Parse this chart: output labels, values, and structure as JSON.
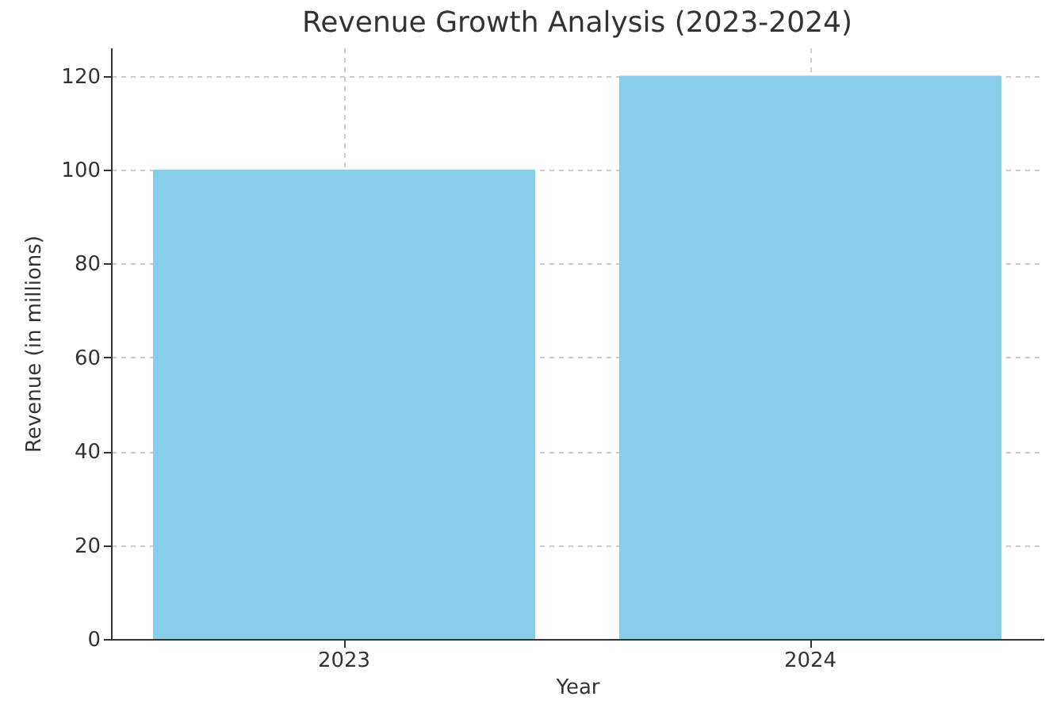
{
  "chart_data": {
    "type": "bar",
    "title": "Revenue Growth Analysis (2023-2024)",
    "xlabel": "Year",
    "ylabel": "Revenue (in millions)",
    "categories": [
      "2023",
      "2024"
    ],
    "values": [
      100,
      120
    ],
    "color": "#87ceeb",
    "ylim": [
      0,
      126
    ],
    "yticks": [
      0,
      20,
      40,
      60,
      80,
      100,
      120
    ],
    "grid": true
  }
}
